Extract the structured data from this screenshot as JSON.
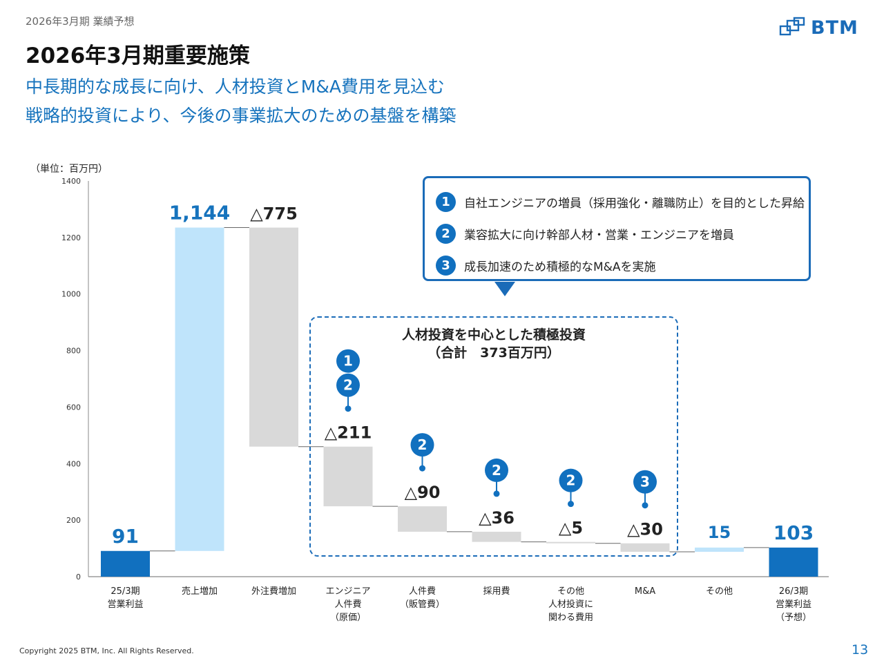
{
  "header": {
    "breadcrumb": "2026年3月期 業績予想",
    "title": "2026年3月期重要施策",
    "subtitle_line1": "中長期的な成長に向け、人材投資とM&A費用を見込む",
    "subtitle_line2": "戦略的投資により、今後の事業拡大のための基盤を構築",
    "logo_text": "BTM"
  },
  "chart_unit": "（単位：百万円）",
  "callout": {
    "items": [
      {
        "num": "1",
        "text": "自社エンジニアの増員（採用強化・離職防止）を目的とした昇給"
      },
      {
        "num": "2",
        "text": "業容拡大に向け幹部人材・営業・エンジニアを増員"
      },
      {
        "num": "3",
        "text": "成長加速のため積極的なM&Aを実施"
      }
    ]
  },
  "investment_box": {
    "title": "人材投資を中心とした積極投資",
    "subtitle": "（合計　373百万円）"
  },
  "colors": {
    "dark_blue": "#1170bf",
    "light_blue": "#bfe4fb",
    "gray": "#d9d9d9",
    "accent_text": "#1673bd"
  },
  "chart_data": {
    "type": "bar",
    "subtype": "waterfall",
    "ylim": [
      0,
      1400
    ],
    "yticks": [
      "0",
      "200",
      "400",
      "600",
      "800",
      "1000",
      "1200",
      "1400"
    ],
    "grid": false,
    "categories": [
      [
        "25/3期",
        "営業利益"
      ],
      [
        "売上増加"
      ],
      [
        "外注費増加"
      ],
      [
        "エンジニア",
        "人件費",
        "（原価）"
      ],
      [
        "人件費",
        "（販管費）"
      ],
      [
        "採用費"
      ],
      [
        "その他",
        "人材投資に",
        "関わる費用"
      ],
      [
        "M&A"
      ],
      [
        "その他"
      ],
      [
        "26/3期",
        "営業利益",
        "（予想）"
      ]
    ],
    "bars": [
      {
        "base": 0,
        "top": 91,
        "label": "91",
        "kind": "total"
      },
      {
        "base": 91,
        "top": 1235,
        "label": "1,144",
        "kind": "increase"
      },
      {
        "base": 460,
        "top": 1235,
        "label": "△775",
        "kind": "decrease"
      },
      {
        "base": 249,
        "top": 460,
        "label": "△211",
        "kind": "decrease"
      },
      {
        "base": 159,
        "top": 249,
        "label": "△90",
        "kind": "decrease"
      },
      {
        "base": 123,
        "top": 159,
        "label": "△36",
        "kind": "decrease"
      },
      {
        "base": 118,
        "top": 123,
        "label": "△5",
        "kind": "decrease"
      },
      {
        "base": 88,
        "top": 118,
        "label": "△30",
        "kind": "decrease"
      },
      {
        "base": 88,
        "top": 103,
        "label": "15",
        "kind": "increase"
      },
      {
        "base": 0,
        "top": 103,
        "label": "103",
        "kind": "total"
      }
    ],
    "markers": [
      {
        "category": 3,
        "badges": [
          "1",
          "2"
        ]
      },
      {
        "category": 4,
        "badges": [
          "2"
        ]
      },
      {
        "category": 5,
        "badges": [
          "2"
        ]
      },
      {
        "category": 6,
        "badges": [
          "2"
        ]
      },
      {
        "category": 7,
        "badges": [
          "3"
        ]
      }
    ]
  },
  "footer": {
    "copyright": "Copyright 2025 BTM, Inc. All Rights Reserved.",
    "page_number": "13"
  }
}
